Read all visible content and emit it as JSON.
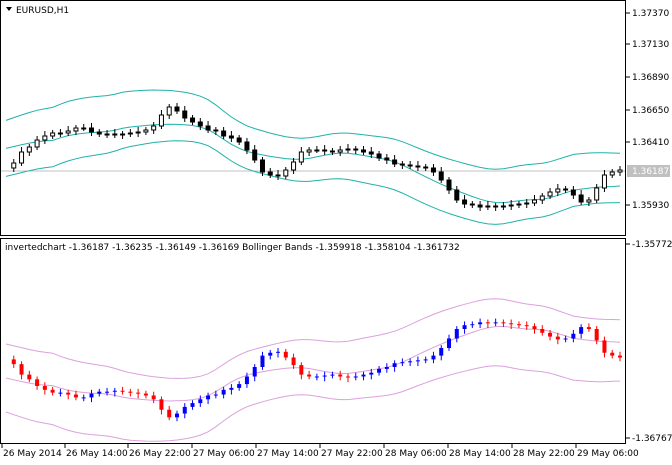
{
  "main_chart": {
    "title": "EURUSD,H1",
    "price_labels": [
      "1.37370",
      "1.37130",
      "1.36890",
      "1.36650",
      "1.36410",
      "1.35930"
    ],
    "current_price": "1.36187",
    "colors": {
      "bull_fill": "#ffffff",
      "bear_fill": "#000000",
      "outline": "#000000",
      "bands": "#20b2aa",
      "bid_line": "#c0c0c0"
    }
  },
  "sub_window": {
    "title": "invertedchart -1.36187 -1.36235 -1.36149 -1.36169 Bollinger Bands -1.359918 -1.358104 -1.361732",
    "price_labels": [
      "-1.35772",
      "-1.36767"
    ],
    "colors": {
      "up": "#0000ff",
      "down": "#ff0000",
      "bands": "#dda0dd"
    }
  },
  "time_axis": {
    "labels": [
      "26 May 2014",
      "26 May 14:00",
      "26 May 22:00",
      "27 May 06:00",
      "27 May 14:00",
      "27 May 22:00",
      "28 May 06:00",
      "28 May 14:00",
      "28 May 22:00",
      "29 May 06:00"
    ]
  },
  "icons": {
    "dropdown": "triangle-down-icon"
  }
}
